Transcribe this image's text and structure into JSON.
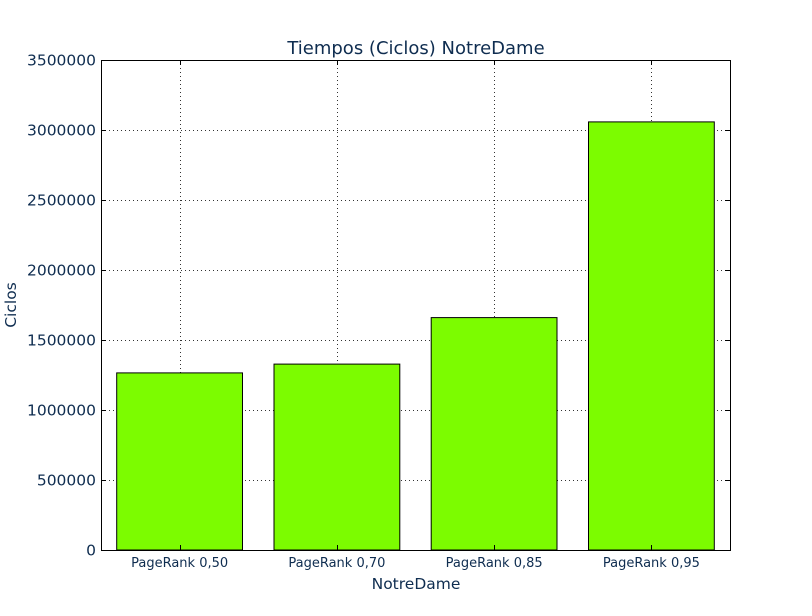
{
  "chart_data": {
    "type": "bar",
    "title": "Tiempos (Ciclos) NotreDame",
    "xlabel": "NotreDame",
    "ylabel": "Ciclos",
    "categories": [
      "PageRank 0,50",
      "PageRank 0,70",
      "PageRank 0,85",
      "PageRank 0,95"
    ],
    "values": [
      1265000,
      1328000,
      1660000,
      3058000
    ],
    "ylim": [
      0,
      3500000
    ],
    "yticks": [
      0,
      500000,
      1000000,
      1500000,
      2000000,
      2500000,
      3000000,
      3500000
    ],
    "grid": true,
    "legend": "none",
    "colors": {
      "bar": "#7cfc00",
      "bar_edge": "#000000",
      "text": "#0f2d50",
      "grid": "#333333",
      "axes": "#000000"
    }
  }
}
